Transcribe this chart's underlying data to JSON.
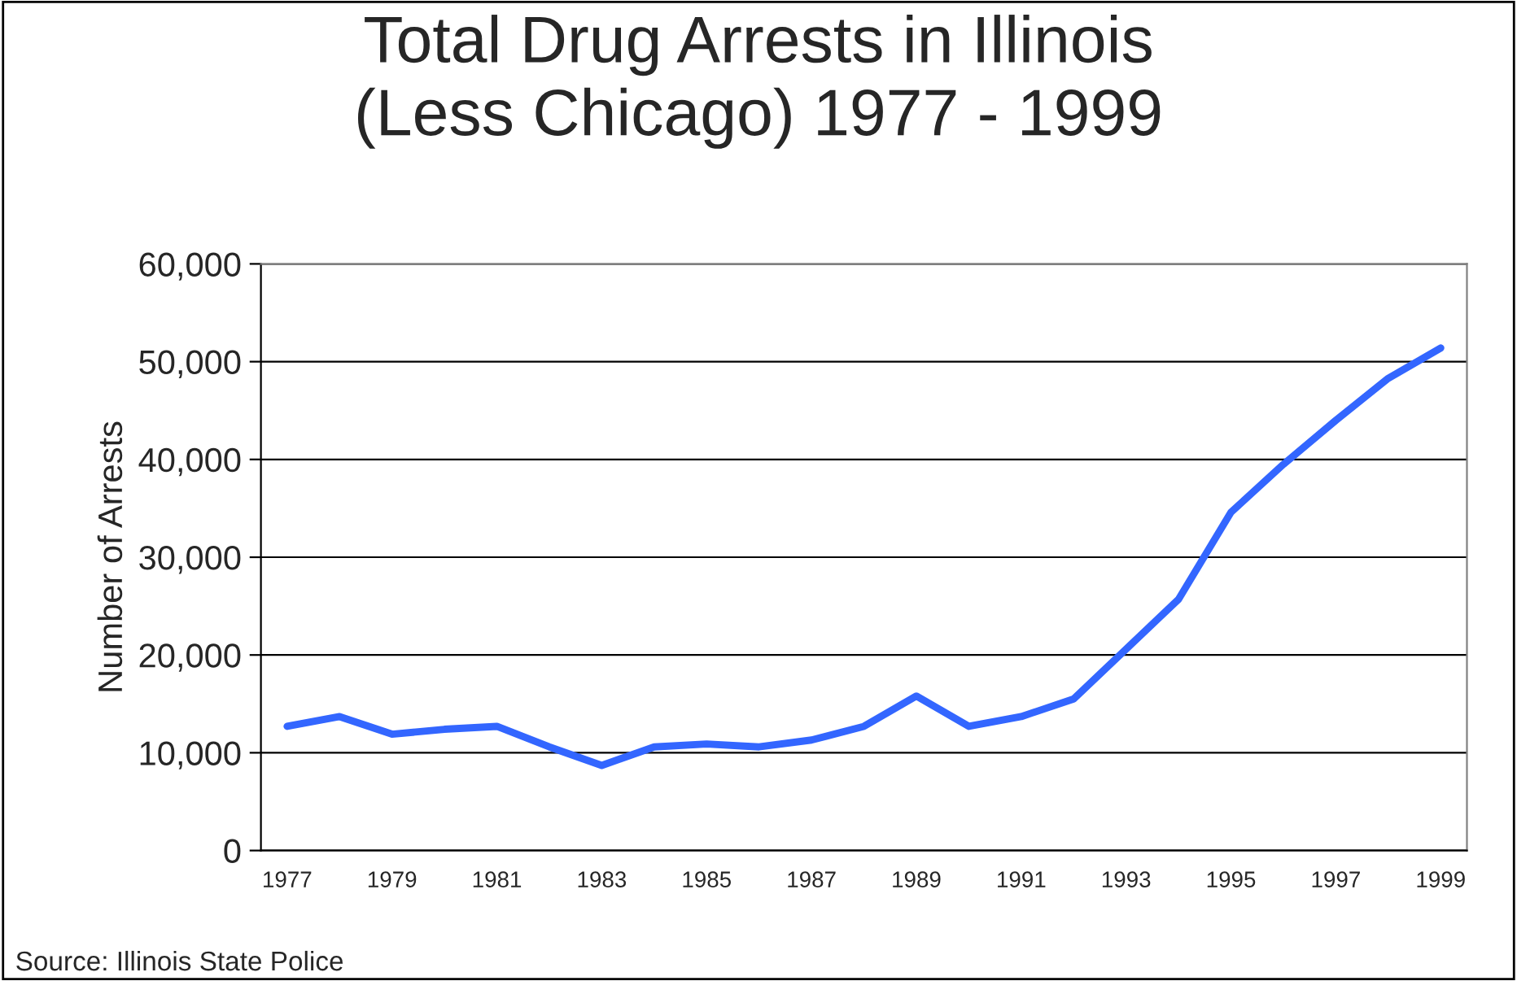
{
  "chart_data": {
    "type": "line",
    "title": "Total Drug Arrests in Illinois\n(Less Chicago) 1977 - 1999",
    "ylabel": "Number of Arrests",
    "categories": [
      "1977",
      null,
      "1979",
      null,
      "1981",
      null,
      "1983",
      null,
      "1985",
      null,
      "1987",
      null,
      "1989",
      null,
      "1991",
      null,
      "1993",
      null,
      "1995",
      null,
      "1997",
      null,
      "1999"
    ],
    "series": [
      {
        "color": "#3366ff",
        "values": [
          12700,
          13700,
          11900,
          12400,
          12700,
          10600,
          8700,
          10600,
          10900,
          10600,
          11300,
          12700,
          15800,
          12700,
          13700,
          15500,
          20600,
          25700,
          34600,
          39500,
          44000,
          48300,
          51400
        ]
      }
    ],
    "ylim": [
      0,
      60000
    ],
    "yticks": [
      {
        "value": 0,
        "label": "0"
      },
      {
        "value": 10000,
        "label": "10,000"
      },
      {
        "value": 20000,
        "label": "20,000"
      },
      {
        "value": 30000,
        "label": "30,000"
      },
      {
        "value": 40000,
        "label": "40,000"
      },
      {
        "value": 50000,
        "label": "50,000"
      },
      {
        "value": 60000,
        "label": "60,000"
      }
    ],
    "grid": "y",
    "legend": false,
    "marker": "none",
    "line_style": "solid",
    "annotations": [
      "Source: Illinois State Police"
    ]
  }
}
